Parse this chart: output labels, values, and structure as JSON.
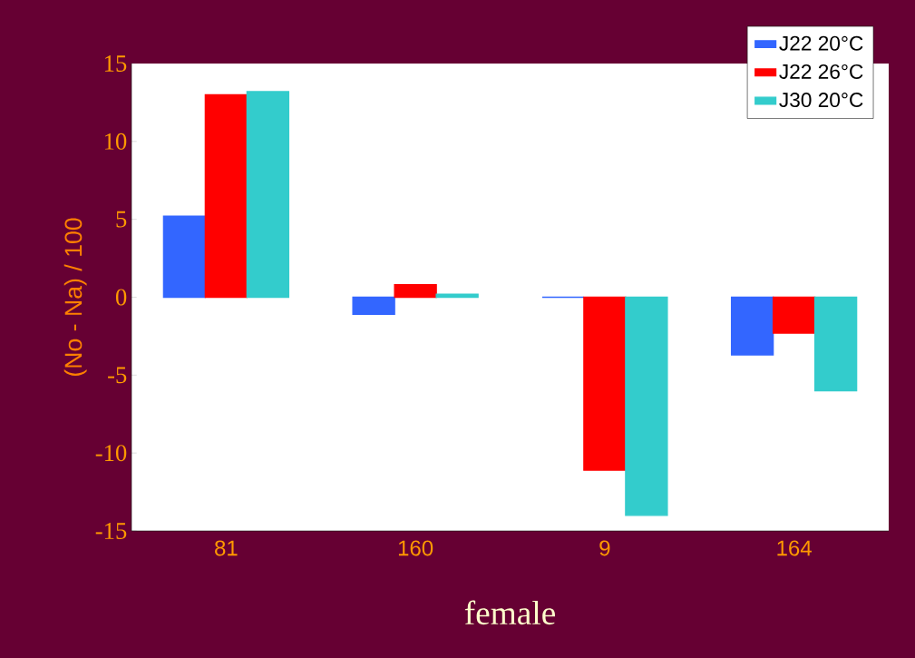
{
  "chart_data": {
    "type": "bar",
    "xlabel": "female",
    "ylabel": "(No - Na) / 100",
    "categories": [
      "81",
      "160",
      "9",
      "164"
    ],
    "series": [
      {
        "name": "J22 20°C",
        "color": "#3366ff",
        "values": [
          5.2,
          -1.1,
          0,
          -3.7
        ]
      },
      {
        "name": "J22 26°C",
        "color": "#ff0000",
        "values": [
          13.0,
          0.8,
          -11.1,
          -2.3
        ]
      },
      {
        "name": "J30 20°C",
        "color": "#33cccc",
        "values": [
          13.2,
          0.2,
          -14.0,
          -6.0
        ]
      }
    ],
    "ylim": [
      -15,
      15
    ],
    "yticks": [
      -15,
      -10,
      -5,
      0,
      5,
      10,
      15
    ],
    "legend": "top right"
  }
}
